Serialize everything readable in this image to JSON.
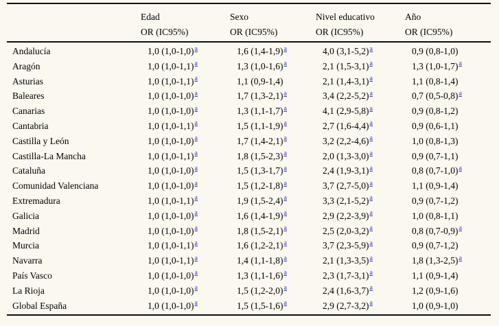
{
  "page": {
    "background": "#faf8ef",
    "text_color": "#000000",
    "rule_color": "#0c0c0c",
    "footnote_link_color": "#3333cc"
  },
  "table": {
    "region_header": "",
    "footnote_marker": "a",
    "columns": [
      {
        "label": "Edad",
        "sub": "OR (IC95%)"
      },
      {
        "label": "Sexo",
        "sub": "OR (IC95%)"
      },
      {
        "label": "Nivel educativo",
        "sub": "OR (IC95%)"
      },
      {
        "label": "Año",
        "sub": "OR (IC95%)"
      }
    ],
    "rows": [
      {
        "region": "Andalucía",
        "values": [
          {
            "v": "1,0 (1,0-1,0)",
            "fn": true
          },
          {
            "v": "1,6 (1,4-1,9)",
            "fn": true
          },
          {
            "v": "4,0 (3,1-5,2)",
            "fn": true
          },
          {
            "v": "0,9 (0,8-1,0)",
            "fn": false
          }
        ]
      },
      {
        "region": "Aragón",
        "values": [
          {
            "v": "1,0 (1,0-1,1)",
            "fn": true
          },
          {
            "v": "1,3 (1,0-1,6)",
            "fn": true
          },
          {
            "v": "2,1 (1,5-3,1)",
            "fn": true
          },
          {
            "v": "1,3 (1,0-1,7)",
            "fn": true
          }
        ]
      },
      {
        "region": "Asturias",
        "values": [
          {
            "v": "1,0 (1,0-1,1)",
            "fn": true
          },
          {
            "v": "1,1 (0,9-1,4)",
            "fn": false
          },
          {
            "v": "2,1 (1,4-3,1)",
            "fn": true
          },
          {
            "v": "1,1 (0,8-1,4)",
            "fn": false
          }
        ]
      },
      {
        "region": "Baleares",
        "values": [
          {
            "v": "1,0 (1,0-1,0)",
            "fn": true
          },
          {
            "v": "1,7 (1,3-2,1)",
            "fn": true
          },
          {
            "v": "3,4 (2,2-5,2)",
            "fn": true
          },
          {
            "v": "0,7 (0,5-0,8)",
            "fn": true
          }
        ]
      },
      {
        "region": "Canarias",
        "values": [
          {
            "v": "1,0 (1,0-1,0)",
            "fn": true
          },
          {
            "v": "1,3 (1,1-1,7)",
            "fn": true
          },
          {
            "v": "4,1 (2,9-5,8)",
            "fn": true
          },
          {
            "v": "0,9 (0,8-1,2)",
            "fn": false
          }
        ]
      },
      {
        "region": "Cantabria",
        "values": [
          {
            "v": "1,0 (1,0-1,1)",
            "fn": true
          },
          {
            "v": "1,5 (1,1-1,9)",
            "fn": true
          },
          {
            "v": "2,7 (1,6-4,4)",
            "fn": true
          },
          {
            "v": "0,9 (0,6-1,1)",
            "fn": false
          }
        ]
      },
      {
        "region": "Castilla y León",
        "values": [
          {
            "v": "1,0 (1,0-1,0)",
            "fn": true
          },
          {
            "v": "1,7 (1,4-2,1)",
            "fn": true
          },
          {
            "v": "3,2 (2,2-4,6)",
            "fn": true
          },
          {
            "v": "1,0 (0,8-1,3)",
            "fn": false
          }
        ]
      },
      {
        "region": "Castilla-La Mancha",
        "values": [
          {
            "v": "1,0 (1,0-1,1)",
            "fn": true
          },
          {
            "v": "1,8 (1,5-2,3)",
            "fn": true
          },
          {
            "v": "2,0 (1,3-3,0)",
            "fn": true
          },
          {
            "v": "0,9 (0,7-1,1)",
            "fn": false
          }
        ]
      },
      {
        "region": "Cataluña",
        "values": [
          {
            "v": "1,0 (1,0-1,0)",
            "fn": true
          },
          {
            "v": "1,5 (1,3-1,7)",
            "fn": true
          },
          {
            "v": "2,4 (1,9-3,1)",
            "fn": true
          },
          {
            "v": "0,8 (0,7-1,0)",
            "fn": true
          }
        ]
      },
      {
        "region": "Comunidad Valenciana",
        "values": [
          {
            "v": "1,0 (1,0-1,0)",
            "fn": true
          },
          {
            "v": "1,5 (1,2-1,8)",
            "fn": true
          },
          {
            "v": "3,7 (2,7-5,0)",
            "fn": true
          },
          {
            "v": "1,1 (0,9-1,4)",
            "fn": false
          }
        ]
      },
      {
        "region": "Extremadura",
        "values": [
          {
            "v": "1,0 (1,0-1,1)",
            "fn": true
          },
          {
            "v": "1,9 (1,5-2,4)",
            "fn": true
          },
          {
            "v": "3,3 (2,1-5,2)",
            "fn": true
          },
          {
            "v": "0,9 (0,7-1,2)",
            "fn": false
          }
        ]
      },
      {
        "region": "Galicia",
        "values": [
          {
            "v": "1,0 (1,0-1,0)",
            "fn": true
          },
          {
            "v": "1,6 (1,4-1,9)",
            "fn": true
          },
          {
            "v": "2,9 (2,2-3,9)",
            "fn": true
          },
          {
            "v": "1,0 (0,8-1,1)",
            "fn": false
          }
        ]
      },
      {
        "region": "Madrid",
        "values": [
          {
            "v": "1,0 (1,0-1,0)",
            "fn": true
          },
          {
            "v": "1,8 (1,5-2,1)",
            "fn": true
          },
          {
            "v": "2,5 (2,0-3,2)",
            "fn": true
          },
          {
            "v": "0,8 (0,7-0,9)",
            "fn": true
          }
        ]
      },
      {
        "region": "Murcia",
        "values": [
          {
            "v": "1,0 (1,0-1,1)",
            "fn": true
          },
          {
            "v": "1,6 (1,2-2,1)",
            "fn": true
          },
          {
            "v": "3,7 (2,3-5,9)",
            "fn": true
          },
          {
            "v": "0,9 (0,7-1,2)",
            "fn": false
          }
        ]
      },
      {
        "region": "Navarra",
        "values": [
          {
            "v": "1,0 (1,0-1,1)",
            "fn": true
          },
          {
            "v": "1,4 (1,1-1,8)",
            "fn": true
          },
          {
            "v": "2,1 (1,3-3,5)",
            "fn": true
          },
          {
            "v": "1,8 (1,3-2,5)",
            "fn": true
          }
        ]
      },
      {
        "region": "País Vasco",
        "values": [
          {
            "v": "1,0 (1,0-1,0)",
            "fn": true
          },
          {
            "v": "1,3 (1,1-1,6)",
            "fn": true
          },
          {
            "v": "2,3 (1,7-3,1)",
            "fn": true
          },
          {
            "v": "1,1 (0,9-1,4)",
            "fn": false
          }
        ]
      },
      {
        "region": "La Rioja",
        "values": [
          {
            "v": "1,0 (1,0-1,0)",
            "fn": true
          },
          {
            "v": "1,5 (1,2-2,0)",
            "fn": true
          },
          {
            "v": "2,4 (1,6-3,7)",
            "fn": true
          },
          {
            "v": "1,2 (0,9-1,6)",
            "fn": false
          }
        ]
      },
      {
        "region": "Global España",
        "values": [
          {
            "v": "1,0 (1,0-1,0)",
            "fn": true
          },
          {
            "v": "1,5 (1,5-1,6)",
            "fn": true
          },
          {
            "v": "2,9 (2,7-3,2)",
            "fn": true
          },
          {
            "v": "1,0 (0,9-1,0)",
            "fn": false
          }
        ]
      }
    ]
  }
}
